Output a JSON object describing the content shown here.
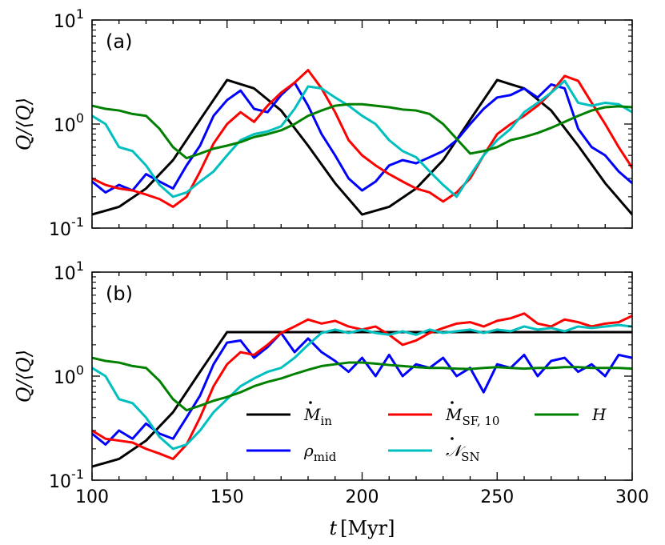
{
  "chart_data": [
    {
      "type": "line",
      "panel_label": "(a)",
      "xlabel": "",
      "ylabel": "Q/⟨Q⟩",
      "xlim": [
        100,
        300
      ],
      "ylim": [
        0.1,
        10
      ],
      "yscale": "log",
      "x_ticks": [],
      "y_ticks": [
        {
          "base": "10",
          "exp": "-1"
        },
        {
          "base": "10",
          "exp": "0"
        },
        {
          "base": "10",
          "exp": "1"
        }
      ],
      "series": [
        {
          "key": "Min",
          "color": "#000000",
          "x": [
            100,
            110,
            120,
            130,
            140,
            150,
            160,
            170,
            180,
            190,
            200,
            210,
            220,
            230,
            240,
            250,
            260,
            270,
            280,
            290,
            300
          ],
          "y": [
            0.135,
            0.16,
            0.24,
            0.45,
            1.1,
            2.65,
            2.2,
            1.35,
            0.62,
            0.27,
            0.135,
            0.16,
            0.24,
            0.45,
            1.1,
            2.65,
            2.2,
            1.35,
            0.62,
            0.27,
            0.135
          ]
        },
        {
          "key": "rho",
          "color": "#0000ff",
          "x": [
            100,
            105,
            110,
            115,
            120,
            125,
            130,
            135,
            140,
            145,
            150,
            155,
            160,
            165,
            170,
            175,
            180,
            185,
            190,
            195,
            200,
            205,
            210,
            215,
            220,
            225,
            230,
            235,
            240,
            245,
            250,
            255,
            260,
            265,
            270,
            275,
            280,
            285,
            290,
            295,
            300
          ],
          "y": [
            0.28,
            0.22,
            0.26,
            0.23,
            0.33,
            0.28,
            0.24,
            0.4,
            0.62,
            1.2,
            1.7,
            2.1,
            1.4,
            1.3,
            1.9,
            2.5,
            1.5,
            0.8,
            0.5,
            0.3,
            0.23,
            0.28,
            0.4,
            0.45,
            0.42,
            0.48,
            0.55,
            0.7,
            1.0,
            1.4,
            1.8,
            1.9,
            2.2,
            1.8,
            2.4,
            2.2,
            0.9,
            0.6,
            0.5,
            0.35,
            0.27
          ]
        },
        {
          "key": "Msf",
          "color": "#ff0000",
          "x": [
            100,
            105,
            110,
            115,
            120,
            125,
            130,
            135,
            140,
            145,
            150,
            155,
            160,
            165,
            170,
            175,
            180,
            185,
            190,
            195,
            200,
            205,
            210,
            215,
            220,
            225,
            230,
            235,
            240,
            245,
            250,
            255,
            260,
            265,
            270,
            275,
            280,
            285,
            290,
            295,
            300
          ],
          "y": [
            0.3,
            0.26,
            0.24,
            0.23,
            0.21,
            0.19,
            0.16,
            0.2,
            0.35,
            0.65,
            1.0,
            1.3,
            1.05,
            1.5,
            2.0,
            2.5,
            3.3,
            2.2,
            1.3,
            0.7,
            0.5,
            0.4,
            0.33,
            0.28,
            0.24,
            0.22,
            0.18,
            0.22,
            0.3,
            0.5,
            0.8,
            1.0,
            1.2,
            1.5,
            2.0,
            2.9,
            2.6,
            1.6,
            1.0,
            0.6,
            0.38
          ]
        },
        {
          "key": "Nsn",
          "color": "#00bfbf",
          "x": [
            100,
            105,
            110,
            115,
            120,
            125,
            130,
            135,
            140,
            145,
            150,
            155,
            160,
            165,
            170,
            175,
            180,
            185,
            190,
            195,
            200,
            205,
            210,
            215,
            220,
            225,
            230,
            235,
            240,
            245,
            250,
            255,
            260,
            265,
            270,
            275,
            280,
            285,
            290,
            295,
            300
          ],
          "y": [
            1.2,
            1.0,
            0.6,
            0.55,
            0.4,
            0.26,
            0.2,
            0.22,
            0.28,
            0.35,
            0.5,
            0.7,
            0.8,
            0.85,
            0.95,
            1.4,
            2.3,
            2.2,
            1.8,
            1.5,
            1.2,
            1.0,
            0.7,
            0.55,
            0.48,
            0.35,
            0.26,
            0.2,
            0.32,
            0.5,
            0.7,
            0.9,
            1.3,
            1.6,
            2.0,
            2.6,
            1.6,
            1.5,
            1.6,
            1.55,
            1.3
          ]
        },
        {
          "key": "H",
          "color": "#008000",
          "x": [
            100,
            105,
            110,
            115,
            120,
            125,
            130,
            135,
            140,
            145,
            150,
            155,
            160,
            165,
            170,
            175,
            180,
            185,
            190,
            195,
            200,
            205,
            210,
            215,
            220,
            225,
            230,
            235,
            240,
            245,
            250,
            255,
            260,
            265,
            270,
            275,
            280,
            285,
            290,
            295,
            300
          ],
          "y": [
            1.5,
            1.4,
            1.35,
            1.25,
            1.2,
            0.9,
            0.6,
            0.47,
            0.52,
            0.58,
            0.62,
            0.67,
            0.75,
            0.8,
            0.87,
            1.0,
            1.2,
            1.35,
            1.5,
            1.55,
            1.55,
            1.5,
            1.45,
            1.38,
            1.35,
            1.25,
            1.0,
            0.72,
            0.52,
            0.55,
            0.6,
            0.7,
            0.75,
            0.82,
            0.92,
            1.05,
            1.2,
            1.35,
            1.45,
            1.48,
            1.45
          ]
        }
      ]
    },
    {
      "type": "line",
      "panel_label": "(b)",
      "xlabel_italic": "t",
      "xlabel_unit": "[Myr]",
      "ylabel": "Q/⟨Q⟩",
      "xlim": [
        100,
        300
      ],
      "ylim": [
        0.1,
        10
      ],
      "yscale": "log",
      "x_ticks": [
        "100",
        "150",
        "200",
        "250",
        "300"
      ],
      "y_ticks": [
        {
          "base": "10",
          "exp": "-1"
        },
        {
          "base": "10",
          "exp": "0"
        },
        {
          "base": "10",
          "exp": "1"
        }
      ],
      "series": [
        {
          "key": "Min",
          "color": "#000000",
          "x": [
            100,
            110,
            120,
            130,
            140,
            150,
            160,
            170,
            180,
            190,
            200,
            210,
            220,
            230,
            240,
            250,
            260,
            270,
            280,
            290,
            300
          ],
          "y": [
            0.135,
            0.16,
            0.24,
            0.45,
            1.1,
            2.65,
            2.65,
            2.65,
            2.65,
            2.65,
            2.65,
            2.65,
            2.65,
            2.65,
            2.65,
            2.65,
            2.65,
            2.65,
            2.65,
            2.65,
            2.65
          ]
        },
        {
          "key": "rho",
          "color": "#0000ff",
          "x": [
            100,
            105,
            110,
            115,
            120,
            125,
            130,
            135,
            140,
            145,
            150,
            155,
            160,
            165,
            170,
            175,
            180,
            185,
            190,
            195,
            200,
            205,
            210,
            215,
            220,
            225,
            230,
            235,
            240,
            245,
            250,
            255,
            260,
            265,
            270,
            275,
            280,
            285,
            290,
            295,
            300
          ],
          "y": [
            0.28,
            0.22,
            0.3,
            0.25,
            0.35,
            0.28,
            0.25,
            0.4,
            0.65,
            1.3,
            2.1,
            2.2,
            1.5,
            1.9,
            2.6,
            1.7,
            2.3,
            1.7,
            1.4,
            1.1,
            1.5,
            1.0,
            1.6,
            1.0,
            1.3,
            1.2,
            1.5,
            1.0,
            1.2,
            0.7,
            1.3,
            1.2,
            1.6,
            1.0,
            1.4,
            1.5,
            1.1,
            1.3,
            1.0,
            1.6,
            1.5
          ]
        },
        {
          "key": "Msf",
          "color": "#ff0000",
          "x": [
            100,
            105,
            110,
            115,
            120,
            125,
            130,
            135,
            140,
            145,
            150,
            155,
            160,
            165,
            170,
            175,
            180,
            185,
            190,
            195,
            200,
            205,
            210,
            215,
            220,
            225,
            230,
            235,
            240,
            245,
            250,
            255,
            260,
            265,
            270,
            275,
            280,
            285,
            290,
            295,
            300
          ],
          "y": [
            0.3,
            0.25,
            0.24,
            0.23,
            0.2,
            0.18,
            0.16,
            0.22,
            0.4,
            0.8,
            1.3,
            1.7,
            1.6,
            2.0,
            2.6,
            3.0,
            3.5,
            3.2,
            3.4,
            3.0,
            2.8,
            3.0,
            2.5,
            2.0,
            2.2,
            2.6,
            2.9,
            3.2,
            3.3,
            3.0,
            3.4,
            3.6,
            4.0,
            3.2,
            3.0,
            3.5,
            3.3,
            3.0,
            3.2,
            3.3,
            3.8
          ]
        },
        {
          "key": "Nsn",
          "color": "#00bfbf",
          "x": [
            100,
            105,
            110,
            115,
            120,
            125,
            130,
            135,
            140,
            145,
            150,
            155,
            160,
            165,
            170,
            175,
            180,
            185,
            190,
            195,
            200,
            205,
            210,
            215,
            220,
            225,
            230,
            235,
            240,
            245,
            250,
            255,
            260,
            265,
            270,
            275,
            280,
            285,
            290,
            295,
            300
          ],
          "y": [
            1.2,
            1.0,
            0.6,
            0.55,
            0.4,
            0.26,
            0.2,
            0.22,
            0.3,
            0.45,
            0.6,
            0.8,
            0.95,
            1.1,
            1.2,
            1.5,
            2.0,
            2.6,
            2.8,
            2.6,
            2.8,
            2.6,
            2.5,
            2.7,
            2.5,
            2.8,
            2.6,
            2.7,
            2.8,
            2.6,
            2.8,
            2.7,
            3.0,
            2.8,
            2.9,
            2.7,
            3.0,
            2.9,
            3.0,
            3.1,
            3.0
          ]
        },
        {
          "key": "H",
          "color": "#008000",
          "x": [
            100,
            105,
            110,
            115,
            120,
            125,
            130,
            135,
            140,
            145,
            150,
            155,
            160,
            165,
            170,
            175,
            180,
            185,
            190,
            195,
            200,
            205,
            210,
            215,
            220,
            225,
            230,
            235,
            240,
            245,
            250,
            255,
            260,
            265,
            270,
            275,
            280,
            285,
            290,
            295,
            300
          ],
          "y": [
            1.5,
            1.4,
            1.35,
            1.25,
            1.2,
            0.9,
            0.6,
            0.47,
            0.52,
            0.58,
            0.63,
            0.7,
            0.8,
            0.88,
            0.95,
            1.05,
            1.15,
            1.25,
            1.3,
            1.35,
            1.35,
            1.32,
            1.28,
            1.25,
            1.22,
            1.2,
            1.2,
            1.18,
            1.17,
            1.2,
            1.22,
            1.2,
            1.18,
            1.2,
            1.2,
            1.22,
            1.22,
            1.2,
            1.2,
            1.2,
            1.18
          ]
        }
      ]
    }
  ],
  "legend": {
    "placement": "lower-right of panel (b)",
    "entries": [
      {
        "key": "Min",
        "main": "M",
        "dot": true,
        "sub": "in",
        "sub_style": "roman"
      },
      {
        "key": "Msf",
        "main": "M",
        "dot": true,
        "sub": "SF, 10",
        "sub_style": "roman"
      },
      {
        "key": "H",
        "main": "H",
        "dot": false,
        "sub": "",
        "sub_style": "roman"
      },
      {
        "key": "rho",
        "main": "ρ",
        "dot": false,
        "sub": "mid",
        "sub_style": "roman"
      },
      {
        "key": "Nsn",
        "main": "𝒩",
        "dot": true,
        "sub": "SN",
        "sub_style": "roman"
      }
    ]
  }
}
